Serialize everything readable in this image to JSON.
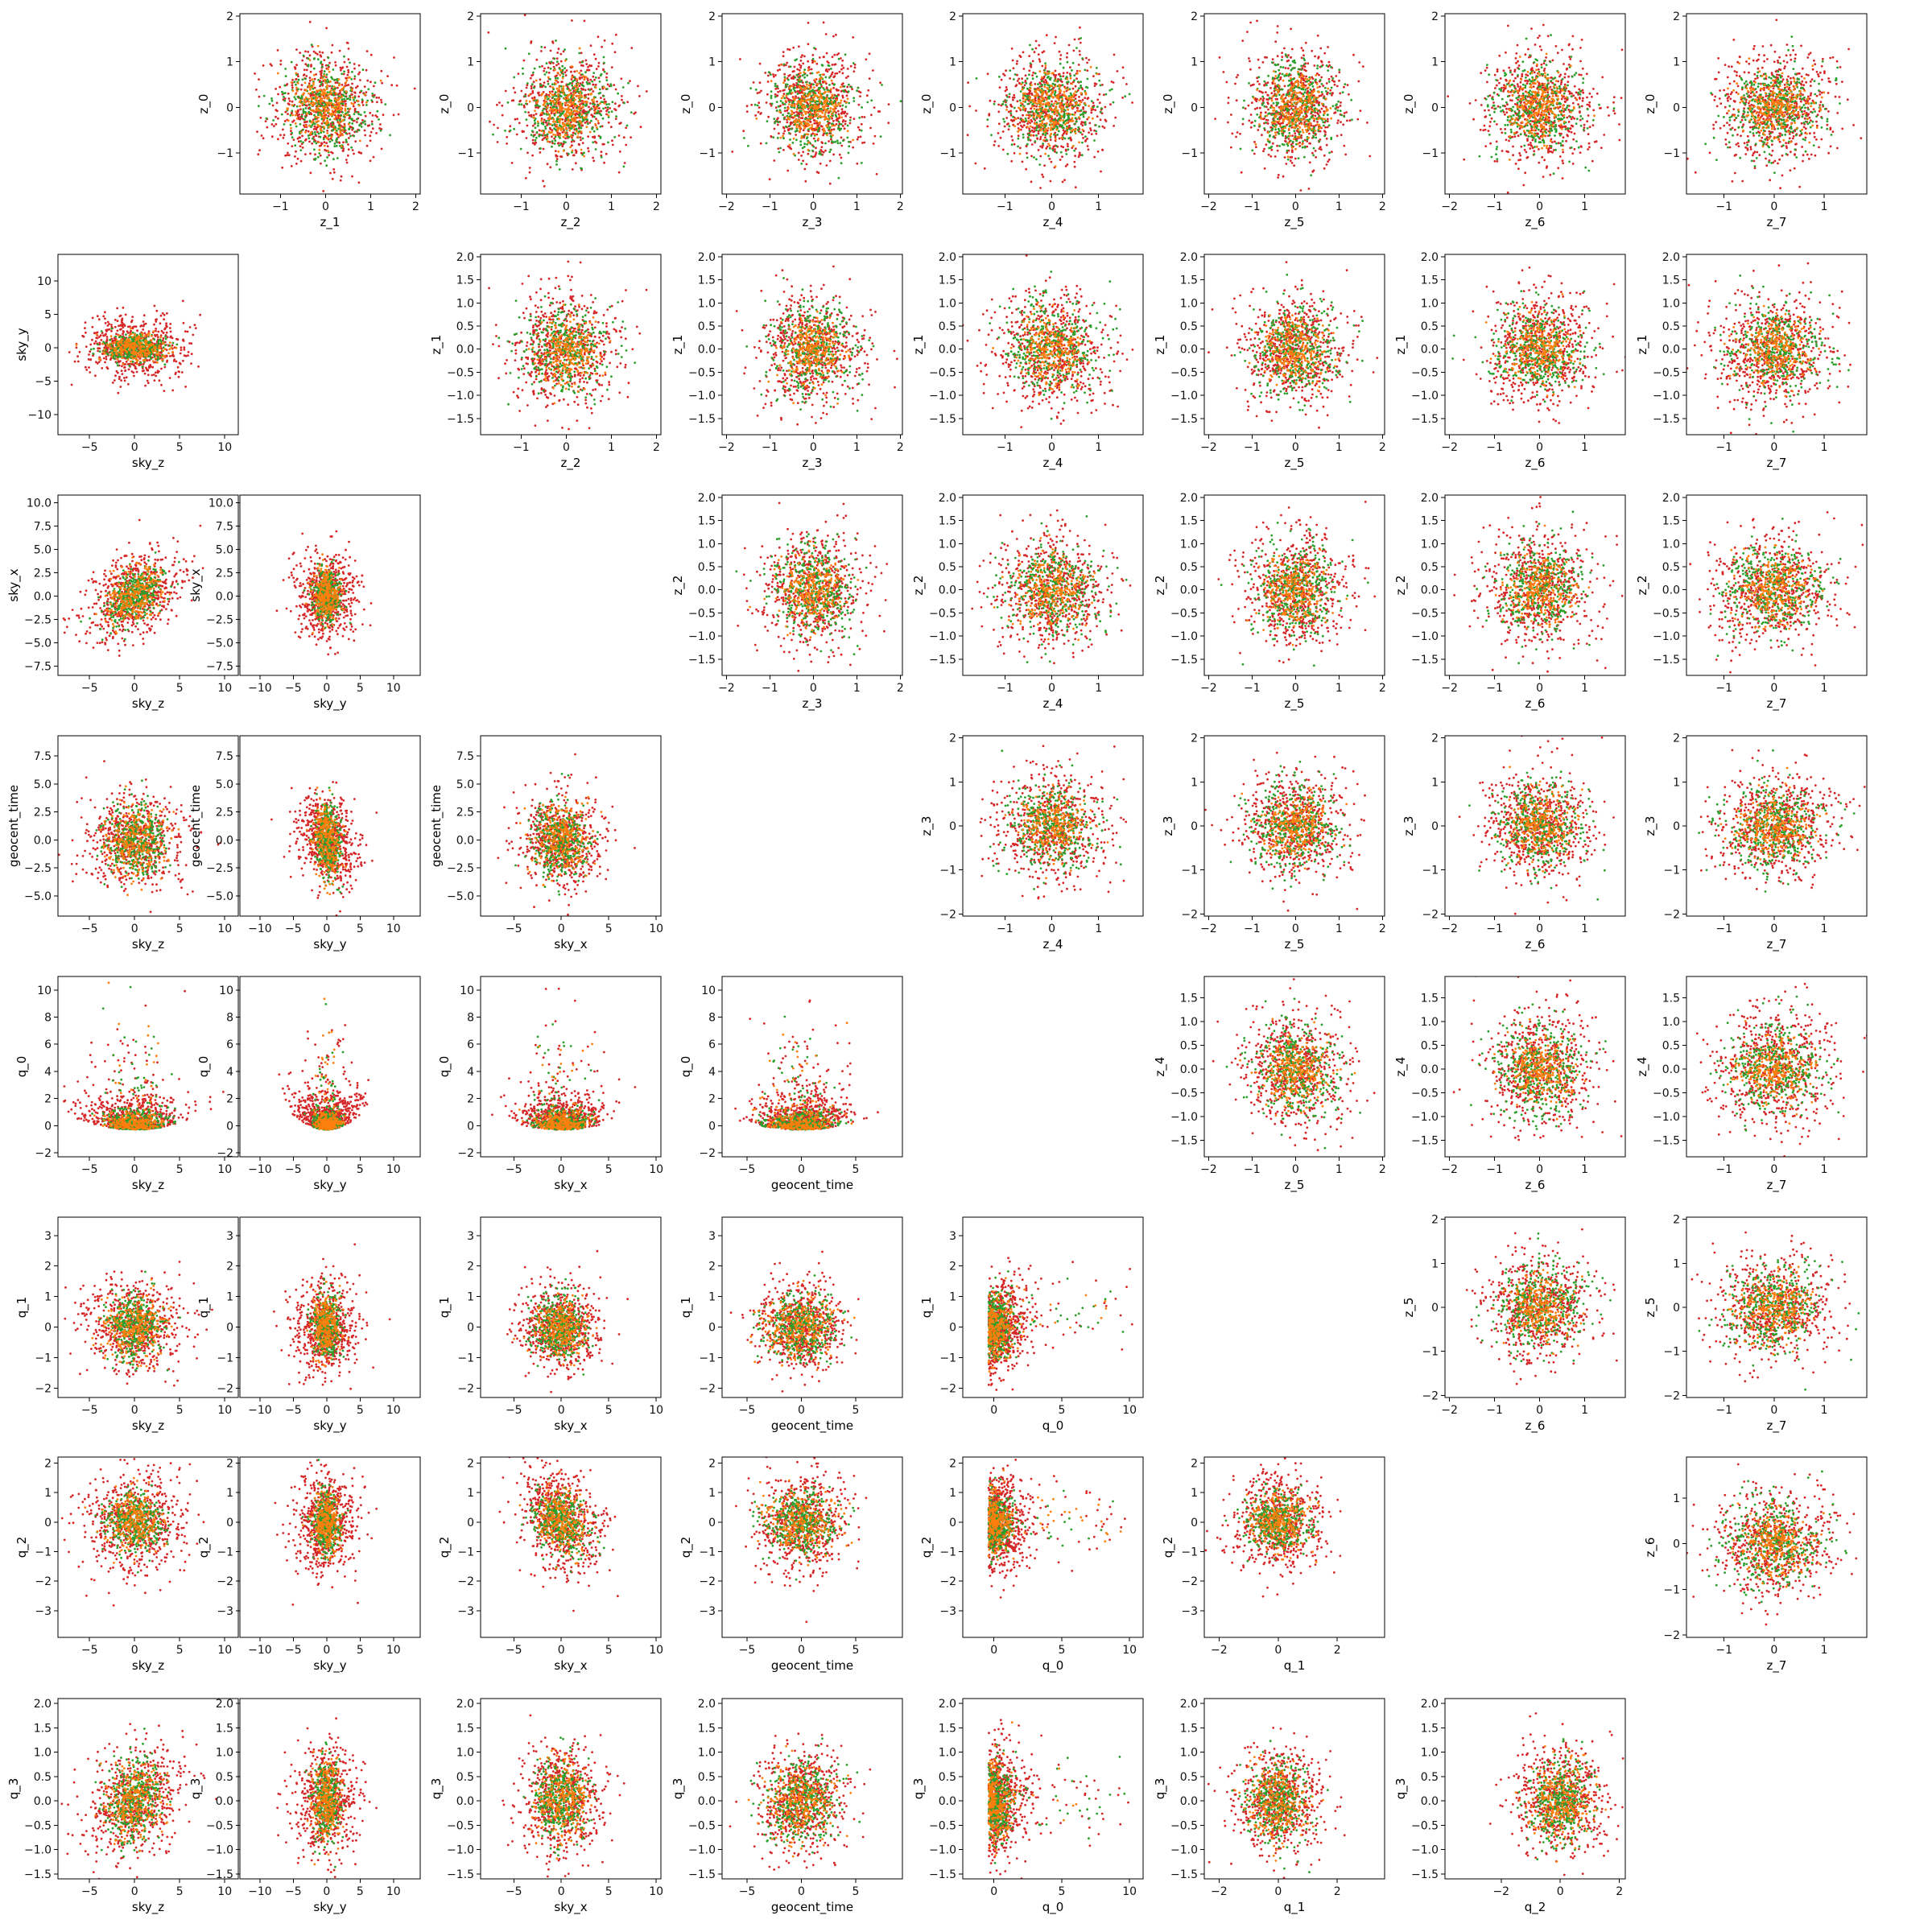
{
  "chart_data": {
    "type": "scatter",
    "grid": false,
    "legend": "none",
    "layout": {
      "rows": 8,
      "columns": 8,
      "row_variables": [
        "z_0",
        "sky_y",
        "sky_x",
        "geocent_time",
        "q_0",
        "q_1",
        "q_2",
        "q_3"
      ],
      "column_variables": [
        "sky_z",
        "sky_y",
        "sky_x",
        "geocent_time",
        "q_0",
        "q_1",
        "q_2",
        "z_7"
      ]
    },
    "series": [
      {
        "color": "#2ca02c",
        "points_per_panel": 650
      },
      {
        "color": "#ff7f0e",
        "points_per_panel": 450
      },
      {
        "color": "#d62728",
        "points_per_panel": 1100
      }
    ],
    "variables": {
      "sky_z": {
        "ticks": [
          -5,
          0,
          5,
          10
        ],
        "tick_labels": [
          "−5",
          "0",
          "5",
          "10"
        ],
        "xlim": [
          -8.5,
          11.5
        ]
      },
      "sky_y": {
        "ticks": [
          -10,
          -5,
          0,
          5,
          10
        ],
        "tick_labels": [
          "−10",
          "−5",
          "0",
          "5",
          "10"
        ],
        "ylim": [
          -13,
          14
        ],
        "xlim": [
          -13,
          14
        ]
      },
      "sky_x": {
        "ticks": [
          -7.5,
          -5.0,
          -2.5,
          0.0,
          2.5,
          5.0,
          7.5,
          10.0
        ],
        "tick_labels": [
          "−7.5",
          "−5.0",
          "−2.5",
          "0.0",
          "2.5",
          "5.0",
          "7.5",
          "10.0"
        ],
        "x_ticks": [
          -5,
          0,
          5,
          10
        ],
        "x_tick_labels": [
          "−5",
          "0",
          "5",
          "10"
        ],
        "ylim": [
          -8.5,
          10.8
        ],
        "xlim": [
          -8.5,
          10.5
        ]
      },
      "geocent_time": {
        "ticks": [
          -5.0,
          -2.5,
          0.0,
          2.5,
          5.0,
          7.5
        ],
        "tick_labels": [
          "−5.0",
          "−2.5",
          "0.0",
          "2.5",
          "5.0",
          "7.5"
        ],
        "x_ticks": [
          -5,
          0,
          5
        ],
        "x_tick_labels": [
          "−5",
          "0",
          "5"
        ],
        "ylim": [
          -6.8,
          9.3
        ],
        "xlim": [
          -7.3,
          9.3
        ]
      },
      "q_0": {
        "ticks": [
          -2,
          0,
          2,
          4,
          6,
          8,
          10
        ],
        "tick_labels": [
          "−2",
          "0",
          "2",
          "4",
          "6",
          "8",
          "10"
        ],
        "x_ticks": [
          0,
          5,
          10
        ],
        "x_tick_labels": [
          "0",
          "5",
          "10"
        ],
        "ylim": [
          -2.3,
          11
        ],
        "xlim": [
          -2.3,
          11
        ]
      },
      "q_1": {
        "ticks": [
          -2,
          -1,
          0,
          1,
          2,
          3
        ],
        "tick_labels": [
          "−2",
          "−1",
          "0",
          "1",
          "2",
          "3"
        ],
        "x_ticks": [
          -2,
          0,
          2
        ],
        "x_tick_labels": [
          "−2",
          "0",
          "2"
        ],
        "ylim": [
          -2.3,
          3.6
        ],
        "xlim": [
          -2.5,
          3.6
        ]
      },
      "q_2": {
        "ticks": [
          -3,
          -2,
          -1,
          0,
          1,
          2
        ],
        "tick_labels": [
          "−3",
          "−2",
          "−1",
          "0",
          "1",
          "2"
        ],
        "x_ticks": [
          -2,
          0,
          2
        ],
        "x_tick_labels": [
          "−2",
          "0",
          "2"
        ],
        "ylim": [
          -3.9,
          2.2
        ],
        "xlim": [
          -3.9,
          2.2
        ]
      },
      "q_3": {
        "ticks": [
          -1.5,
          -1.0,
          -0.5,
          0.0,
          0.5,
          1.0,
          1.5,
          2.0
        ],
        "tick_labels": [
          "−1.5",
          "−1.0",
          "−0.5",
          "0.0",
          "0.5",
          "1.0",
          "1.5",
          "2.0"
        ],
        "ylim": [
          -1.6,
          2.1
        ]
      },
      "z_0": {
        "ticks": [
          -1,
          0,
          1,
          2
        ],
        "tick_labels": [
          "−1",
          "0",
          "1",
          "2"
        ],
        "ylim": [
          -1.9,
          2.05
        ]
      },
      "z_1": {
        "ticks": [
          -1.5,
          -1.0,
          -0.5,
          0.0,
          0.5,
          1.0,
          1.5,
          2.0
        ],
        "tick_labels": [
          "−1.5",
          "−1.0",
          "−0.5",
          "0.0",
          "0.5",
          "1.0",
          "1.5",
          "2.0"
        ],
        "x_ticks": [
          -1,
          0,
          1,
          2
        ],
        "x_tick_labels": [
          "−1",
          "0",
          "1",
          "2"
        ],
        "ylim": [
          -1.85,
          2.05
        ],
        "xlim": [
          -1.9,
          2.1
        ]
      },
      "z_2": {
        "ticks": [
          -1.5,
          -1.0,
          -0.5,
          0.0,
          0.5,
          1.0,
          1.5,
          2.0
        ],
        "tick_labels": [
          "−1.5",
          "−1.0",
          "−0.5",
          "0.0",
          "0.5",
          "1.0",
          "1.5",
          "2.0"
        ],
        "x_ticks": [
          -1,
          0,
          1,
          2
        ],
        "x_tick_labels": [
          "−1",
          "0",
          "1",
          "2"
        ],
        "ylim": [
          -1.85,
          2.05
        ],
        "xlim": [
          -1.9,
          2.1
        ]
      },
      "z_3": {
        "ticks": [
          -2,
          -1,
          0,
          1,
          2
        ],
        "tick_labels": [
          "−2",
          "−1",
          "0",
          "1",
          "2"
        ],
        "ylim": [
          -2.05,
          2.05
        ],
        "xlim": [
          -2.1,
          2.05
        ]
      },
      "z_4": {
        "ticks": [
          -1.5,
          -1.0,
          -0.5,
          0.0,
          0.5,
          1.0,
          1.5
        ],
        "tick_labels": [
          "−1.5",
          "−1.0",
          "−0.5",
          "0.0",
          "0.5",
          "1.0",
          "1.5"
        ],
        "x_ticks": [
          -1,
          0,
          1
        ],
        "x_tick_labels": [
          "−1",
          "0",
          "1"
        ],
        "ylim": [
          -1.85,
          1.95
        ],
        "xlim": [
          -1.9,
          1.95
        ]
      },
      "z_5": {
        "ticks": [
          -2,
          -1,
          0,
          1,
          2
        ],
        "tick_labels": [
          "−2",
          "−1",
          "0",
          "1",
          "2"
        ],
        "ylim": [
          -2.05,
          2.05
        ],
        "xlim": [
          -2.1,
          2.05
        ]
      },
      "z_6": {
        "ticks": [
          -2,
          -1,
          0,
          1
        ],
        "tick_labels": [
          "−2",
          "−1",
          "0",
          "1"
        ],
        "ylim": [
          -2.05,
          1.9
        ],
        "xlim": [
          -2.1,
          1.9
        ]
      },
      "z_7": {
        "ticks": [
          -1,
          0,
          1
        ],
        "tick_labels": [
          "−1",
          "0",
          "1"
        ],
        "xlim": [
          -1.75,
          1.85
        ]
      }
    },
    "panels": [
      {
        "row": 0,
        "col": 1,
        "x": "z_1",
        "y": "z_0"
      },
      {
        "row": 0,
        "col": 2,
        "x": "z_2",
        "y": "z_0"
      },
      {
        "row": 0,
        "col": 3,
        "x": "z_3",
        "y": "z_0"
      },
      {
        "row": 0,
        "col": 4,
        "x": "z_4",
        "y": "z_0"
      },
      {
        "row": 0,
        "col": 5,
        "x": "z_5",
        "y": "z_0"
      },
      {
        "row": 0,
        "col": 6,
        "x": "z_6",
        "y": "z_0"
      },
      {
        "row": 0,
        "col": 7,
        "x": "z_7",
        "y": "z_0"
      },
      {
        "row": 1,
        "col": 0,
        "x": "sky_z",
        "y": "sky_y"
      },
      {
        "row": 1,
        "col": 2,
        "x": "z_2",
        "y": "z_1"
      },
      {
        "row": 1,
        "col": 3,
        "x": "z_3",
        "y": "z_1"
      },
      {
        "row": 1,
        "col": 4,
        "x": "z_4",
        "y": "z_1"
      },
      {
        "row": 1,
        "col": 5,
        "x": "z_5",
        "y": "z_1"
      },
      {
        "row": 1,
        "col": 6,
        "x": "z_6",
        "y": "z_1"
      },
      {
        "row": 1,
        "col": 7,
        "x": "z_7",
        "y": "z_1"
      },
      {
        "row": 2,
        "col": 0,
        "x": "sky_z",
        "y": "sky_x"
      },
      {
        "row": 2,
        "col": 1,
        "x": "sky_y",
        "y": "sky_x"
      },
      {
        "row": 2,
        "col": 3,
        "x": "z_3",
        "y": "z_2"
      },
      {
        "row": 2,
        "col": 4,
        "x": "z_4",
        "y": "z_2"
      },
      {
        "row": 2,
        "col": 5,
        "x": "z_5",
        "y": "z_2"
      },
      {
        "row": 2,
        "col": 6,
        "x": "z_6",
        "y": "z_2"
      },
      {
        "row": 2,
        "col": 7,
        "x": "z_7",
        "y": "z_2"
      },
      {
        "row": 3,
        "col": 0,
        "x": "sky_z",
        "y": "geocent_time"
      },
      {
        "row": 3,
        "col": 1,
        "x": "sky_y",
        "y": "geocent_time"
      },
      {
        "row": 3,
        "col": 2,
        "x": "sky_x",
        "y": "geocent_time"
      },
      {
        "row": 3,
        "col": 4,
        "x": "z_4",
        "y": "z_3"
      },
      {
        "row": 3,
        "col": 5,
        "x": "z_5",
        "y": "z_3"
      },
      {
        "row": 3,
        "col": 6,
        "x": "z_6",
        "y": "z_3"
      },
      {
        "row": 3,
        "col": 7,
        "x": "z_7",
        "y": "z_3"
      },
      {
        "row": 4,
        "col": 0,
        "x": "sky_z",
        "y": "q_0"
      },
      {
        "row": 4,
        "col": 1,
        "x": "sky_y",
        "y": "q_0"
      },
      {
        "row": 4,
        "col": 2,
        "x": "sky_x",
        "y": "q_0"
      },
      {
        "row": 4,
        "col": 3,
        "x": "geocent_time",
        "y": "q_0"
      },
      {
        "row": 4,
        "col": 5,
        "x": "z_5",
        "y": "z_4"
      },
      {
        "row": 4,
        "col": 6,
        "x": "z_6",
        "y": "z_4"
      },
      {
        "row": 4,
        "col": 7,
        "x": "z_7",
        "y": "z_4"
      },
      {
        "row": 5,
        "col": 0,
        "x": "sky_z",
        "y": "q_1"
      },
      {
        "row": 5,
        "col": 1,
        "x": "sky_y",
        "y": "q_1"
      },
      {
        "row": 5,
        "col": 2,
        "x": "sky_x",
        "y": "q_1"
      },
      {
        "row": 5,
        "col": 3,
        "x": "geocent_time",
        "y": "q_1"
      },
      {
        "row": 5,
        "col": 4,
        "x": "q_0",
        "y": "q_1"
      },
      {
        "row": 5,
        "col": 6,
        "x": "z_6",
        "y": "z_5"
      },
      {
        "row": 5,
        "col": 7,
        "x": "z_7",
        "y": "z_5"
      },
      {
        "row": 6,
        "col": 0,
        "x": "sky_z",
        "y": "q_2"
      },
      {
        "row": 6,
        "col": 1,
        "x": "sky_y",
        "y": "q_2"
      },
      {
        "row": 6,
        "col": 2,
        "x": "sky_x",
        "y": "q_2"
      },
      {
        "row": 6,
        "col": 3,
        "x": "geocent_time",
        "y": "q_2"
      },
      {
        "row": 6,
        "col": 4,
        "x": "q_0",
        "y": "q_2"
      },
      {
        "row": 6,
        "col": 5,
        "x": "q_1",
        "y": "q_2"
      },
      {
        "row": 6,
        "col": 7,
        "x": "z_7",
        "y": "z_6"
      },
      {
        "row": 7,
        "col": 0,
        "x": "sky_z",
        "y": "q_3"
      },
      {
        "row": 7,
        "col": 1,
        "x": "sky_y",
        "y": "q_3"
      },
      {
        "row": 7,
        "col": 2,
        "x": "sky_x",
        "y": "q_3"
      },
      {
        "row": 7,
        "col": 3,
        "x": "geocent_time",
        "y": "q_3"
      },
      {
        "row": 7,
        "col": 4,
        "x": "q_0",
        "y": "q_3"
      },
      {
        "row": 7,
        "col": 5,
        "x": "q_1",
        "y": "q_3"
      },
      {
        "row": 7,
        "col": 6,
        "x": "q_2",
        "y": "q_3"
      }
    ]
  }
}
